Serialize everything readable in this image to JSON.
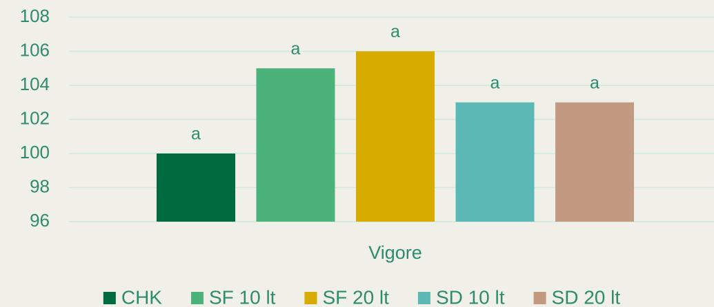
{
  "chart_data": {
    "type": "bar",
    "categories": [
      "Vigore"
    ],
    "series": [
      {
        "name": "CHK",
        "color": "#006b3c",
        "values": [
          100
        ],
        "letters": [
          "a"
        ]
      },
      {
        "name": "SF 10 lt",
        "color": "#4bb37a",
        "values": [
          105
        ],
        "letters": [
          "a"
        ]
      },
      {
        "name": "SF 20 lt",
        "color": "#d8ab00",
        "values": [
          106
        ],
        "letters": [
          "a"
        ]
      },
      {
        "name": "SD 10 lt",
        "color": "#5bb8b4",
        "values": [
          103
        ],
        "letters": [
          "a"
        ]
      },
      {
        "name": "SD 20 lt",
        "color": "#c29a82",
        "values": [
          103
        ],
        "letters": [
          "a"
        ]
      }
    ],
    "ylim": [
      96,
      108
    ],
    "yticks": [
      96,
      98,
      100,
      102,
      104,
      106,
      108
    ],
    "grid": true,
    "legend": "bottom"
  }
}
